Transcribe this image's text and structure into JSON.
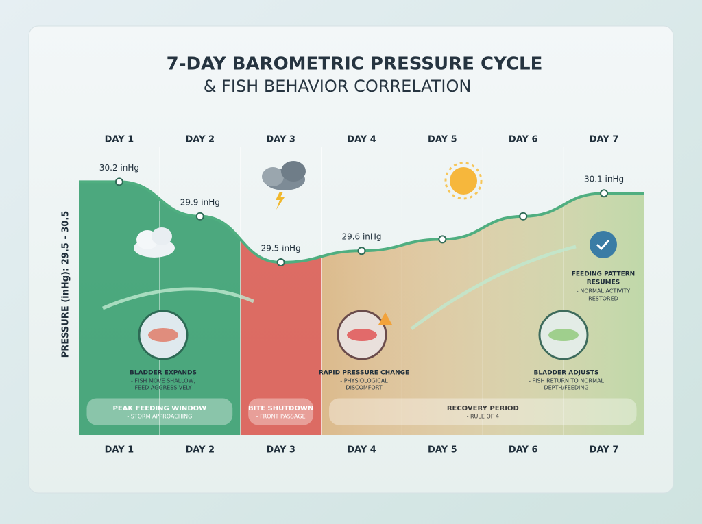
{
  "chart_data": {
    "type": "line",
    "title": "7-DAY BAROMETRIC PRESSURE CYCLE",
    "subtitle": "& FISH BEHAVIOR CORRELATION",
    "y_label": "PRESSURE (inHg): 29.5 - 30.5",
    "categories": [
      "DAY 1",
      "DAY 2",
      "DAY 3",
      "DAY 4",
      "DAY 5",
      "DAY 6",
      "DAY 7"
    ],
    "series": [
      {
        "name": "Pressure",
        "color": "#4fae80",
        "values": [
          30.2,
          29.9,
          29.5,
          29.6,
          29.7,
          29.9,
          30.1
        ],
        "value_labels": [
          "30.2 inHg",
          "29.9 inHg",
          "29.5 inHg",
          "29.6 inHg",
          null,
          null,
          "30.1 inHg"
        ]
      }
    ],
    "ylim": [
      28.0,
      30.5
    ],
    "zones": [
      {
        "label": "PEAK FEEDING WINDOW",
        "note": "- STORM APPROACHING",
        "span": [
          0,
          1
        ],
        "color": "#2f9a68"
      },
      {
        "label": "BITE SHUTDOWN",
        "note": "- FRONT PASSAGE",
        "span": [
          2,
          2
        ],
        "color": "#d9534a"
      },
      {
        "label": "RECOVERY PERIOD",
        "note": "- RULE OF 4",
        "span": [
          3,
          6
        ],
        "color": "#d8b07a"
      }
    ],
    "annotations": [
      {
        "title": "BLADDER EXPANDS",
        "lines": [
          "- FISH MOVE SHALLOW,",
          "FEED AGGRESSIVELY"
        ]
      },
      {
        "title": "RAPID PRESSURE CHANGE",
        "lines": [
          "- PHYSIOLOGICAL",
          "DISCOMFORT"
        ]
      },
      {
        "title": "BLADDER ADJUSTS",
        "lines": [
          "- FISH RETURN TO NORMAL",
          "DEPTH/FEEDING"
        ]
      },
      {
        "title": "FEEDING PATTERN",
        "lines": [
          "RESUMES",
          "- NORMAL ACTIVITY",
          "RESTORED"
        ]
      }
    ]
  }
}
